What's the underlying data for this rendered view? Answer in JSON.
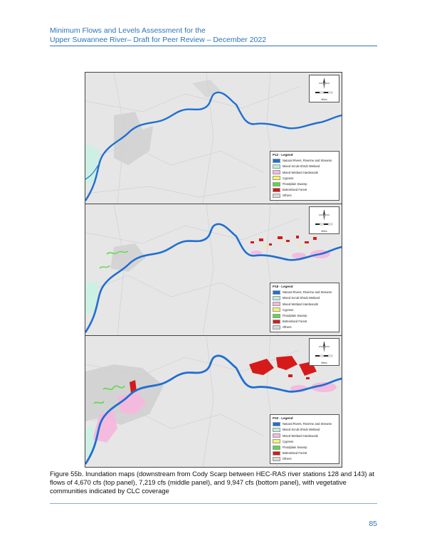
{
  "header": {
    "line1": "Minimum Flows and Levels Assessment for the",
    "line2": "Upper Suwannee River– Draft for Peer Review – December 2022"
  },
  "compass": {
    "scale_label": "Miles",
    "n": "N",
    "s": "S",
    "e": "E",
    "w": "W",
    "ticks": [
      "0",
      "0.5",
      "1"
    ]
  },
  "panels": [
    {
      "legend_title": "P12 - Legend"
    },
    {
      "legend_title": "P18 - Legend"
    },
    {
      "legend_title": "P20 - Legend"
    }
  ],
  "legend_items": [
    {
      "label": "Natural Rivers, Riverine and Streams",
      "color": "#1f6fd1"
    },
    {
      "label": "Mixed Scrub-Shrub Wetland",
      "color": "#b9efe0"
    },
    {
      "label": "Mixed Wetland Hardwoods",
      "color": "#f5b8de"
    },
    {
      "label": "Cypress",
      "color": "#f4f46a"
    },
    {
      "label": "Floodplain Swamp",
      "color": "#5fd64a"
    },
    {
      "label": "Bottomland Forest",
      "color": "#d61a1a"
    },
    {
      "label": "Others",
      "color": "#d9d9d9"
    }
  ],
  "caption": "Figure 55b. Inundation maps (downstream from Cody Scarp between HEC-RAS river stations 128 and 143) at flows of 4,670 cfs (top panel), 7,219 cfs (middle panel), and 9,947 cfs (bottom panel), with vegetative communities indicated by CLC coverage",
  "page_number": "85"
}
